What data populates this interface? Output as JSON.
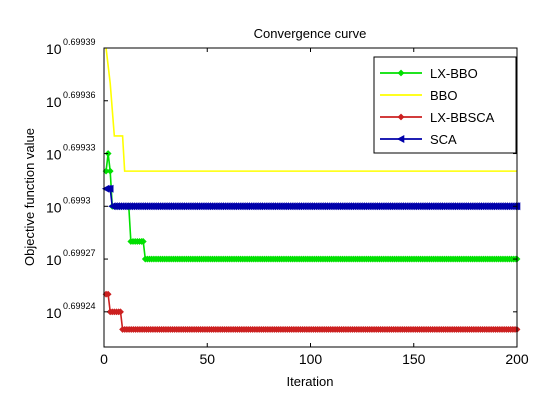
{
  "chart_data": {
    "type": "line",
    "title": "Convergence curve",
    "xlabel": "Iteration",
    "ylabel": "Objective function value",
    "xlim": [
      0,
      200
    ],
    "x_ticks": [
      0,
      50,
      100,
      150,
      200
    ],
    "x_tick_labels": [
      "0",
      "50",
      "100",
      "150",
      "200"
    ],
    "ylog": true,
    "ylim_exponent": [
      0.69922,
      0.69939
    ],
    "y_tick_base": "10",
    "y_ticks": [
      0.69924,
      0.69927,
      0.6993,
      0.69933,
      0.69936,
      0.69939
    ],
    "y_tick_exponent_labels": [
      "0.69924",
      "0.69927",
      "0.6993",
      "0.69933",
      "0.69936",
      "0.69939"
    ],
    "grid": false,
    "legend_position": "top-right",
    "series": [
      {
        "name": "LX-BBO",
        "color": "#00e000",
        "marker": "diamond",
        "x": [
          1,
          2,
          3,
          4,
          12,
          13,
          19,
          20,
          21,
          200
        ],
        "y_exponent": [
          0.69932,
          0.69933,
          0.69932,
          0.6993,
          0.6993,
          0.69928,
          0.69928,
          0.69927,
          0.69927,
          0.69927
        ]
      },
      {
        "name": "BBO",
        "color": "#ffff00",
        "marker": "none",
        "x": [
          1,
          3,
          5,
          6,
          9,
          10,
          200
        ],
        "y_exponent": [
          0.69939,
          0.69937,
          0.69934,
          0.69934,
          0.69934,
          0.69932,
          0.69932
        ]
      },
      {
        "name": "LX-BBSCA",
        "color": "#cc2020",
        "marker": "diamond",
        "x": [
          1,
          2,
          3,
          4,
          5,
          8,
          9,
          200
        ],
        "y_exponent": [
          0.69925,
          0.69925,
          0.69924,
          0.69924,
          0.69924,
          0.69924,
          0.69923,
          0.69923
        ]
      },
      {
        "name": "SCA",
        "color": "#0000aa",
        "marker": "triangle-left",
        "x": [
          1,
          3,
          4,
          200
        ],
        "y_exponent": [
          0.69931,
          0.69931,
          0.6993,
          0.6993
        ]
      }
    ]
  }
}
